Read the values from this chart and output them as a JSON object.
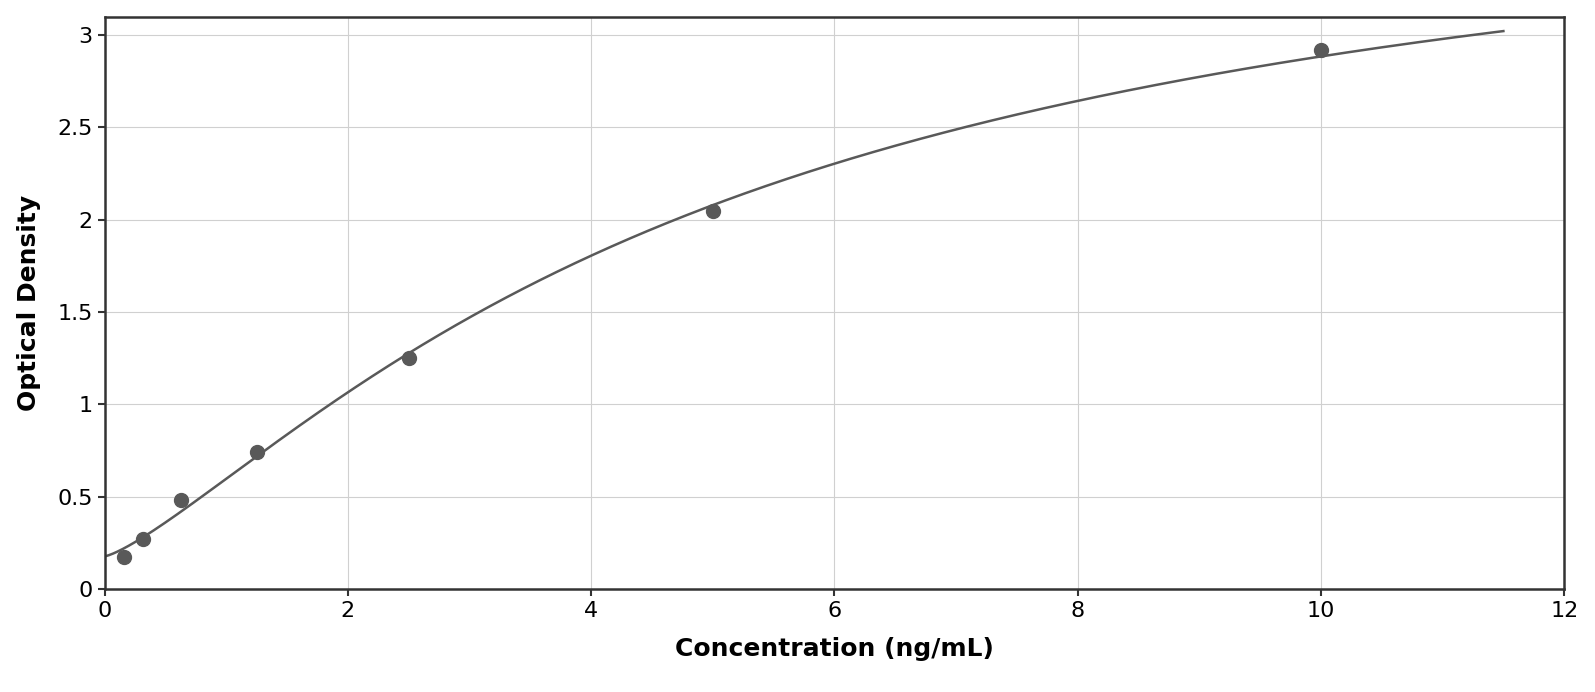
{
  "x_data": [
    0.156,
    0.313,
    0.625,
    1.25,
    2.5,
    5.0,
    10.0
  ],
  "y_data": [
    0.175,
    0.27,
    0.48,
    0.74,
    1.25,
    2.05,
    2.92
  ],
  "point_color": "#595959",
  "line_color": "#595959",
  "xlabel": "Concentration (ng/mL)",
  "ylabel": "Optical Density",
  "xlim": [
    0,
    12
  ],
  "ylim": [
    0,
    3.1
  ],
  "xticks": [
    0,
    2,
    4,
    6,
    8,
    10,
    12
  ],
  "yticks": [
    0,
    0.5,
    1.0,
    1.5,
    2.0,
    2.5,
    3.0
  ],
  "xlabel_fontsize": 18,
  "ylabel_fontsize": 18,
  "tick_fontsize": 16,
  "marker_size": 100,
  "line_width": 1.8,
  "background_color": "#ffffff",
  "grid_color": "#d0d0d0",
  "spine_color": "#333333",
  "figure_bg": "#ffffff",
  "outer_border_color": "#888888"
}
